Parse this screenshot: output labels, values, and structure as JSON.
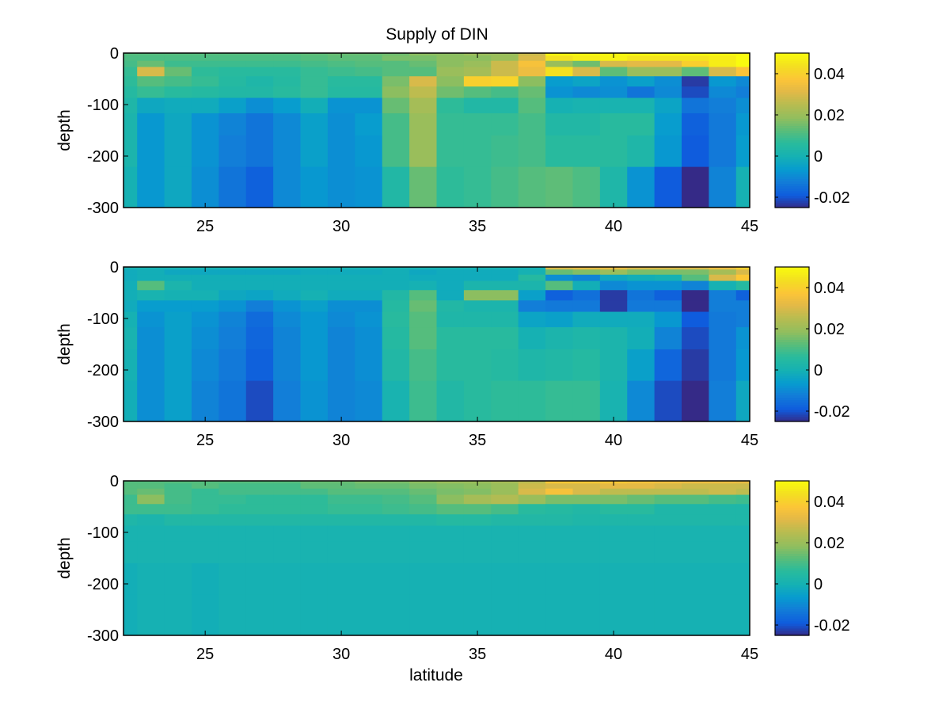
{
  "chart_data": {
    "type": "heatmap",
    "title": "Supply of DIN",
    "xlabel": "latitude",
    "ylabel": "depth",
    "xlim": [
      22,
      45
    ],
    "ylim": [
      -300,
      0
    ],
    "x_ticks": [
      "25",
      "30",
      "35",
      "40",
      "45"
    ],
    "y_ticks": [
      "0",
      "-100",
      "-200",
      "-300"
    ],
    "colorbar": {
      "colormap": "parula",
      "clim": [
        -0.025,
        0.05
      ],
      "ticks": [
        "0.04",
        "0.02",
        "0",
        "-0.02"
      ]
    },
    "latitudes": [
      22,
      23,
      24,
      25,
      26,
      27,
      28,
      29,
      30,
      31,
      32,
      33,
      34,
      35,
      36,
      37,
      38,
      39,
      40,
      41,
      42,
      43,
      44,
      45
    ],
    "depth_edges": [
      0,
      -5,
      -15,
      -27,
      -45,
      -65,
      -87,
      -117,
      -160,
      -221,
      -300
    ],
    "panels": [
      {
        "name": "panel-1",
        "values": [
          [
            0.012,
            0.012,
            0.012,
            0.012,
            0.012,
            0.012,
            0.012,
            0.013,
            0.014,
            0.014,
            0.015,
            0.018,
            0.018,
            0.02,
            0.02,
            0.028,
            0.05,
            0.05,
            0.05,
            0.05,
            0.05,
            0.05,
            0.05,
            0.05
          ],
          [
            0.011,
            0.011,
            0.011,
            0.011,
            0.011,
            0.011,
            0.011,
            0.012,
            0.013,
            0.013,
            0.016,
            0.016,
            0.018,
            0.018,
            0.02,
            0.03,
            0.044,
            0.047,
            0.048,
            0.045,
            0.045,
            0.045,
            0.047,
            0.05
          ],
          [
            0.01,
            0.014,
            0.009,
            0.009,
            0.009,
            0.009,
            0.009,
            0.01,
            0.011,
            0.012,
            0.012,
            0.014,
            0.018,
            0.02,
            0.028,
            0.036,
            0.02,
            0.015,
            0.03,
            0.032,
            0.032,
            0.04,
            0.047,
            0.05
          ],
          [
            0.008,
            0.03,
            0.014,
            0.007,
            0.006,
            0.006,
            0.006,
            0.008,
            0.009,
            0.01,
            0.012,
            0.012,
            0.02,
            0.022,
            0.028,
            0.034,
            0.044,
            0.03,
            0.013,
            0.02,
            0.02,
            0.013,
            0.03,
            0.037
          ],
          [
            0.007,
            0.012,
            0.01,
            0.008,
            0.005,
            0.003,
            0.005,
            0.008,
            0.006,
            0.006,
            0.016,
            0.03,
            0.018,
            0.04,
            0.041,
            0.018,
            -0.006,
            -0.004,
            -0.008,
            -0.005,
            -0.009,
            -0.023,
            -0.007,
            -0.01
          ],
          [
            0.005,
            0.008,
            0.006,
            0.005,
            0.004,
            0.004,
            0.006,
            0.008,
            0.005,
            0.005,
            0.018,
            0.026,
            0.015,
            0.012,
            0.01,
            0.014,
            -0.008,
            -0.01,
            -0.009,
            -0.014,
            -0.01,
            -0.021,
            -0.01,
            -0.012
          ],
          [
            0.003,
            -0.003,
            -0.002,
            -0.002,
            -0.005,
            -0.009,
            -0.006,
            -0.001,
            -0.008,
            -0.008,
            0.014,
            0.022,
            0.007,
            0.004,
            0.004,
            0.012,
            0.0,
            0.001,
            0.001,
            0.001,
            -0.004,
            -0.014,
            -0.012,
            -0.009
          ],
          [
            0.002,
            -0.007,
            -0.003,
            -0.008,
            -0.011,
            -0.014,
            -0.01,
            -0.005,
            -0.009,
            -0.006,
            0.01,
            0.02,
            0.008,
            0.008,
            0.008,
            0.01,
            0.004,
            0.004,
            0.006,
            0.006,
            -0.006,
            -0.018,
            -0.013,
            -0.007
          ],
          [
            0.002,
            -0.007,
            -0.003,
            -0.008,
            -0.012,
            -0.014,
            -0.01,
            -0.005,
            -0.009,
            -0.007,
            0.01,
            0.02,
            0.008,
            0.008,
            0.009,
            0.01,
            0.006,
            0.006,
            0.006,
            0.003,
            -0.007,
            -0.019,
            -0.013,
            -0.006
          ],
          [
            0.0,
            -0.007,
            -0.003,
            -0.009,
            -0.014,
            -0.018,
            -0.01,
            -0.007,
            -0.009,
            -0.008,
            0.004,
            0.014,
            0.007,
            0.008,
            0.01,
            0.012,
            0.013,
            0.011,
            0.003,
            -0.008,
            -0.019,
            -0.025,
            -0.011,
            0.0
          ]
        ]
      },
      {
        "name": "panel-2",
        "values": [
          [
            0.0,
            0.0,
            0.0,
            0.0,
            0.0,
            0.0,
            0.0,
            0.0,
            0.0,
            0.0,
            0.0,
            0.0,
            0.0,
            0.0,
            0.0,
            0.0,
            0.03,
            0.032,
            0.033,
            0.03,
            0.03,
            0.03,
            0.034,
            0.04
          ],
          [
            -0.002,
            -0.001,
            -0.003,
            -0.003,
            -0.003,
            -0.003,
            -0.003,
            -0.002,
            -0.002,
            -0.002,
            -0.001,
            -0.003,
            -0.002,
            -0.002,
            -0.002,
            0.0,
            0.014,
            0.017,
            0.02,
            0.016,
            0.016,
            0.016,
            0.022,
            0.03
          ],
          [
            -0.002,
            -0.001,
            -0.001,
            -0.001,
            -0.001,
            -0.001,
            -0.001,
            -0.001,
            -0.001,
            -0.001,
            -0.001,
            -0.002,
            -0.002,
            -0.002,
            -0.002,
            0.005,
            -0.009,
            -0.011,
            -0.003,
            -0.001,
            0.0,
            0.012,
            0.03,
            0.038
          ],
          [
            -0.001,
            0.012,
            0.002,
            -0.001,
            -0.001,
            -0.001,
            -0.001,
            -0.001,
            -0.001,
            -0.001,
            -0.001,
            0.0,
            -0.002,
            0.002,
            0.002,
            0.002,
            0.012,
            -0.001,
            -0.01,
            -0.008,
            -0.008,
            -0.011,
            0.0,
            0.005
          ],
          [
            -0.001,
            0.001,
            0.0,
            0.0,
            -0.003,
            -0.004,
            -0.002,
            0.0,
            -0.002,
            -0.002,
            0.004,
            0.012,
            -0.002,
            0.018,
            0.018,
            -0.005,
            -0.018,
            -0.015,
            -0.023,
            -0.014,
            -0.018,
            -0.026,
            -0.012,
            -0.018
          ],
          [
            -0.002,
            -0.006,
            -0.006,
            -0.006,
            -0.008,
            -0.012,
            -0.008,
            -0.005,
            -0.009,
            -0.009,
            0.005,
            0.014,
            0.004,
            0.002,
            0.002,
            -0.012,
            -0.013,
            -0.013,
            -0.023,
            -0.013,
            -0.013,
            -0.026,
            -0.012,
            -0.012
          ],
          [
            0.0,
            -0.008,
            -0.005,
            -0.008,
            -0.011,
            -0.016,
            -0.01,
            -0.007,
            -0.01,
            -0.008,
            0.006,
            0.012,
            0.003,
            0.003,
            0.003,
            -0.004,
            -0.005,
            -0.002,
            -0.002,
            -0.002,
            -0.007,
            -0.019,
            -0.013,
            -0.012
          ],
          [
            0.001,
            -0.009,
            -0.005,
            -0.009,
            -0.012,
            -0.017,
            -0.011,
            -0.007,
            -0.011,
            -0.009,
            0.005,
            0.012,
            0.006,
            0.006,
            0.006,
            0.0,
            0.002,
            0.003,
            0.002,
            -0.001,
            -0.011,
            -0.021,
            -0.013,
            -0.008
          ],
          [
            0.0,
            -0.009,
            -0.005,
            -0.01,
            -0.013,
            -0.018,
            -0.011,
            -0.007,
            -0.011,
            -0.009,
            0.004,
            0.01,
            0.006,
            0.006,
            0.005,
            0.003,
            0.004,
            0.005,
            0.002,
            -0.005,
            -0.017,
            -0.023,
            -0.013,
            -0.007
          ],
          [
            -0.001,
            -0.009,
            -0.005,
            -0.011,
            -0.014,
            -0.021,
            -0.012,
            -0.008,
            -0.011,
            -0.01,
            0.001,
            0.009,
            0.004,
            0.006,
            0.007,
            0.007,
            0.008,
            0.008,
            0.001,
            -0.01,
            -0.021,
            -0.025,
            -0.012,
            -0.003
          ]
        ]
      },
      {
        "name": "panel-3",
        "values": [
          [
            0.012,
            0.012,
            0.012,
            0.012,
            0.012,
            0.012,
            0.012,
            0.014,
            0.014,
            0.016,
            0.016,
            0.018,
            0.02,
            0.02,
            0.022,
            0.026,
            0.038,
            0.038,
            0.038,
            0.036,
            0.035,
            0.034,
            0.034,
            0.033
          ],
          [
            0.012,
            0.012,
            0.01,
            0.012,
            0.01,
            0.01,
            0.01,
            0.013,
            0.013,
            0.014,
            0.014,
            0.016,
            0.017,
            0.018,
            0.02,
            0.028,
            0.03,
            0.03,
            0.032,
            0.032,
            0.03,
            0.028,
            0.028,
            0.028
          ],
          [
            0.012,
            0.014,
            0.01,
            0.008,
            0.01,
            0.01,
            0.01,
            0.01,
            0.012,
            0.012,
            0.012,
            0.014,
            0.016,
            0.017,
            0.02,
            0.03,
            0.036,
            0.03,
            0.026,
            0.026,
            0.026,
            0.026,
            0.028,
            0.026
          ],
          [
            0.009,
            0.018,
            0.01,
            0.008,
            0.008,
            0.007,
            0.007,
            0.007,
            0.009,
            0.009,
            0.01,
            0.012,
            0.018,
            0.022,
            0.024,
            0.02,
            0.016,
            0.016,
            0.016,
            0.014,
            0.012,
            0.012,
            0.01,
            0.009
          ],
          [
            0.009,
            0.009,
            0.009,
            0.008,
            0.007,
            0.007,
            0.007,
            0.007,
            0.008,
            0.008,
            0.009,
            0.01,
            0.012,
            0.012,
            0.01,
            0.006,
            0.005,
            0.004,
            0.006,
            0.006,
            0.003,
            0.003,
            0.003,
            0.003
          ],
          [
            0.003,
            0.002,
            0.004,
            0.004,
            0.004,
            0.004,
            0.004,
            0.004,
            0.004,
            0.004,
            0.004,
            0.004,
            0.005,
            0.005,
            0.004,
            0.004,
            0.004,
            0.003,
            0.003,
            0.003,
            0.003,
            0.003,
            0.003,
            0.003
          ],
          [
            0.001,
            0.001,
            0.001,
            0.001,
            0.001,
            0.001,
            0.001,
            0.001,
            0.001,
            0.001,
            0.001,
            0.001,
            0.001,
            0.001,
            0.001,
            0.001,
            0.001,
            0.001,
            0.001,
            0.001,
            0.001,
            0.001,
            0.001,
            0.001
          ],
          [
            0.001,
            0.001,
            0.001,
            0.001,
            0.001,
            0.001,
            0.001,
            0.001,
            0.001,
            0.001,
            0.001,
            0.001,
            0.001,
            0.001,
            0.001,
            0.001,
            0.001,
            0.001,
            0.001,
            0.001,
            0.001,
            0.001,
            0.001,
            0.001
          ],
          [
            -0.001,
            0.0,
            0.0,
            -0.001,
            0.0,
            0.0,
            0.0,
            0.0,
            0.0,
            0.0,
            0.0,
            0.0,
            0.0,
            0.0,
            0.0,
            0.0,
            0.0,
            0.0,
            0.0,
            0.0,
            0.0,
            0.0,
            0.0,
            0.0
          ],
          [
            -0.001,
            0.0,
            0.0,
            -0.001,
            0.0,
            0.0,
            0.0,
            0.0,
            0.0,
            0.0,
            0.0,
            0.0,
            0.0,
            0.0,
            0.0,
            0.0,
            0.0,
            0.0,
            0.0,
            0.0,
            0.0,
            0.0,
            0.0,
            0.0
          ]
        ]
      }
    ]
  }
}
